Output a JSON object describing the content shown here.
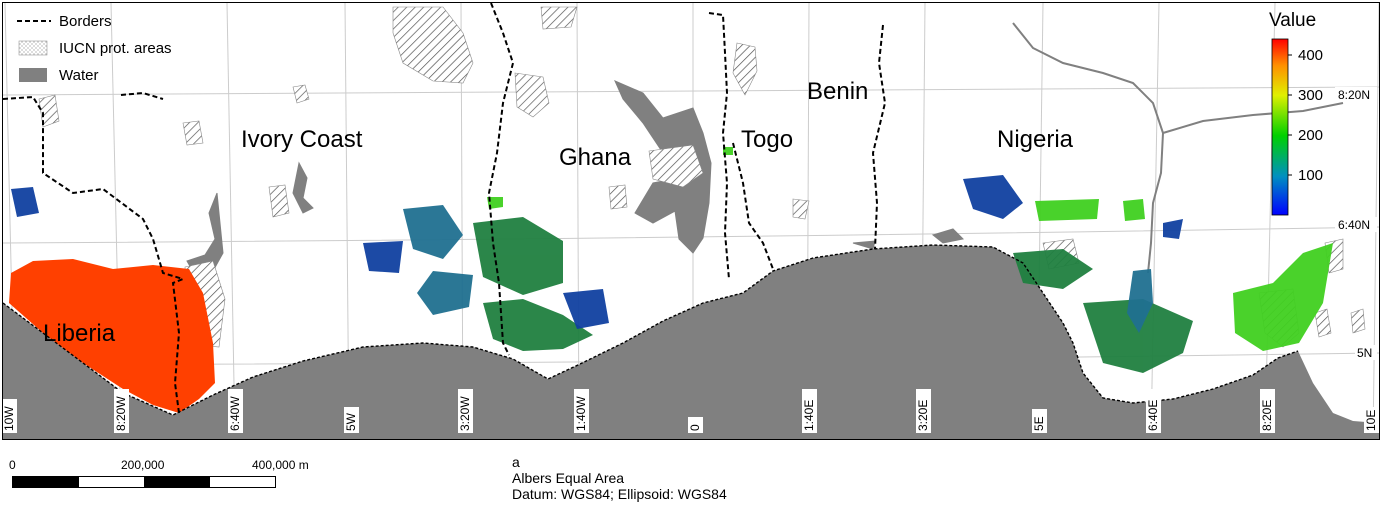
{
  "legend": {
    "borders": "Borders",
    "protected_areas": "IUCN prot. areas",
    "water": "Water"
  },
  "countries": [
    "Ivory Coast",
    "Ghana",
    "Togo",
    "Benin",
    "Nigeria",
    "Liberia"
  ],
  "colorbar": {
    "title": "Value",
    "ticks": [
      "400",
      "300",
      "200",
      "100"
    ],
    "range": [
      0,
      440
    ]
  },
  "graticule": {
    "lon_labels": [
      "10W",
      "8:20W",
      "6:40W",
      "5W",
      "3:20W",
      "1:40W",
      "0",
      "1:40E",
      "3:20E",
      "5E",
      "6:40E",
      "8:20E",
      "10E"
    ],
    "lat_labels": [
      "8:20N",
      "6:40N",
      "5N"
    ]
  },
  "scalebar": {
    "labels": [
      "0",
      "200,000",
      "400,000 m"
    ]
  },
  "projection": {
    "figure_letter": "a",
    "name": "Albers Equal Area",
    "datum": "Datum: WGS84; Ellipsoid: WGS84"
  },
  "colors": {
    "water": "#808080",
    "ocean": "#808080",
    "liberia_high": "#ff4000",
    "green": "#1fa060",
    "lime": "#40d020",
    "blue": "#1040a0",
    "teal": "#207090"
  }
}
